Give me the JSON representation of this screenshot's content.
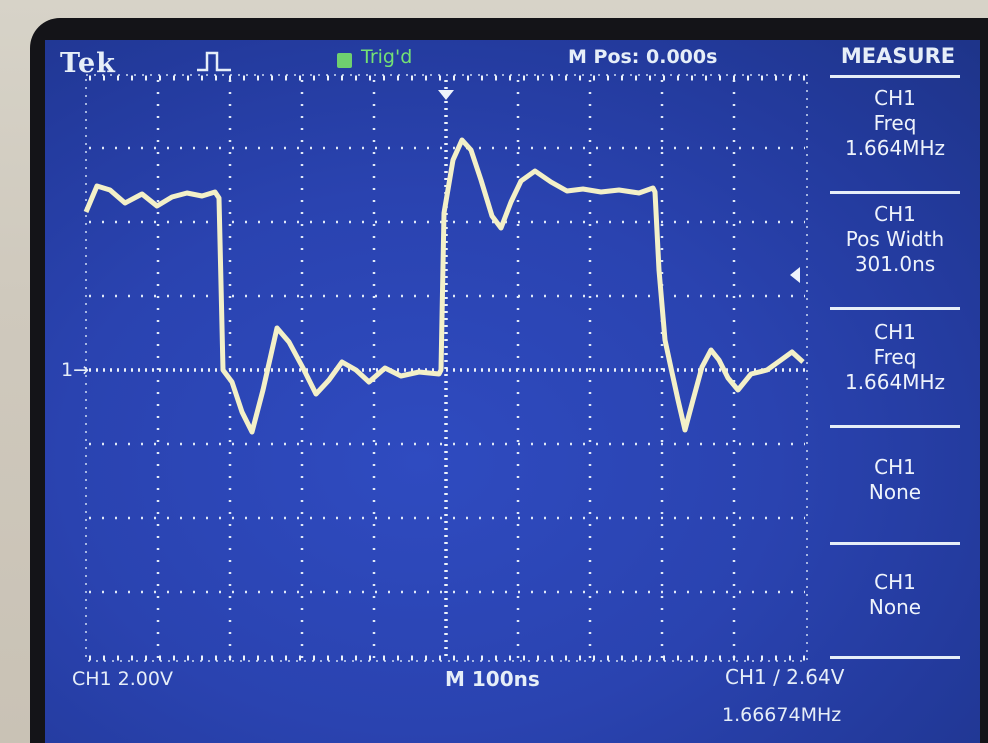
{
  "header": {
    "brand": "Tek",
    "acquire_icon": "trigger-pulse-icon",
    "status_icon": "run-state-icon",
    "trigger_status": "Trig'd",
    "main_position": "M Pos: 0.000s"
  },
  "menu": {
    "title": "MEASURE",
    "items": [
      {
        "line1": "CH1",
        "line2": "Freq",
        "line3": "1.664MHz"
      },
      {
        "line1": "CH1",
        "line2": "Pos Width",
        "line3": "301.0ns"
      },
      {
        "line1": "CH1",
        "line2": "Freq",
        "line3": "1.664MHz"
      },
      {
        "line1": "CH1",
        "line2": "None",
        "line3": ""
      },
      {
        "line1": "CH1",
        "line2": "None",
        "line3": ""
      }
    ]
  },
  "footer": {
    "channel_scale": "CH1  2.00V",
    "time_base": "M 100ns",
    "trigger_setting": "CH1 ∕ 2.64V",
    "trigger_frequency": "1.66674MHz"
  },
  "markers": {
    "ch1_ground": "1→"
  },
  "colors": {
    "screen": "#2a43b0",
    "trace": "#f3f0c8",
    "text": "#e6eef8",
    "trig_green": "#74e274"
  }
}
